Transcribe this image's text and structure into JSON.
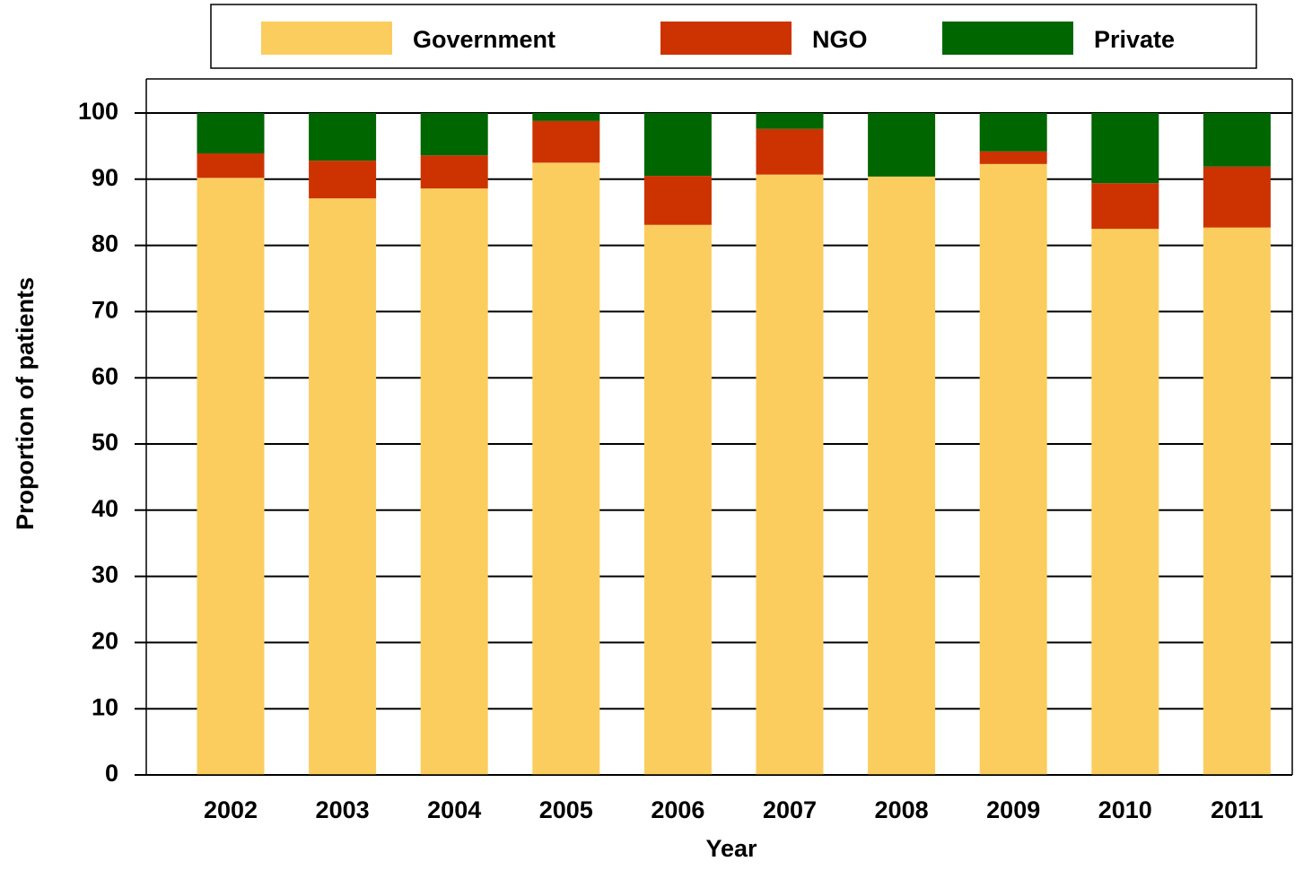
{
  "chart_data": {
    "type": "stacked_bar",
    "x_label": "Year",
    "y_label": "Proportion of patients",
    "categories": [
      "2002",
      "2003",
      "2004",
      "2005",
      "2006",
      "2007",
      "2008",
      "2009",
      "2010",
      "2011"
    ],
    "series": [
      {
        "name": "Government",
        "color": "#fbcd5f",
        "values": [
          90.2,
          87.1,
          88.6,
          92.5,
          83.1,
          90.7,
          90.4,
          92.3,
          82.5,
          82.7
        ]
      },
      {
        "name": "NGO",
        "color": "#cc3300",
        "values": [
          3.7,
          5.7,
          5.0,
          6.3,
          7.4,
          6.9,
          0,
          1.9,
          6.9,
          9.2
        ]
      },
      {
        "name": "Private",
        "color": "#006600",
        "values": [
          6.1,
          7.2,
          6.4,
          1.2,
          9.5,
          2.4,
          9.6,
          5.8,
          10.6,
          8.1
        ]
      }
    ],
    "ylim": [
      0,
      100
    ],
    "yticks": [
      0,
      10,
      20,
      30,
      40,
      50,
      60,
      70,
      80,
      90,
      100
    ],
    "grid": true
  }
}
